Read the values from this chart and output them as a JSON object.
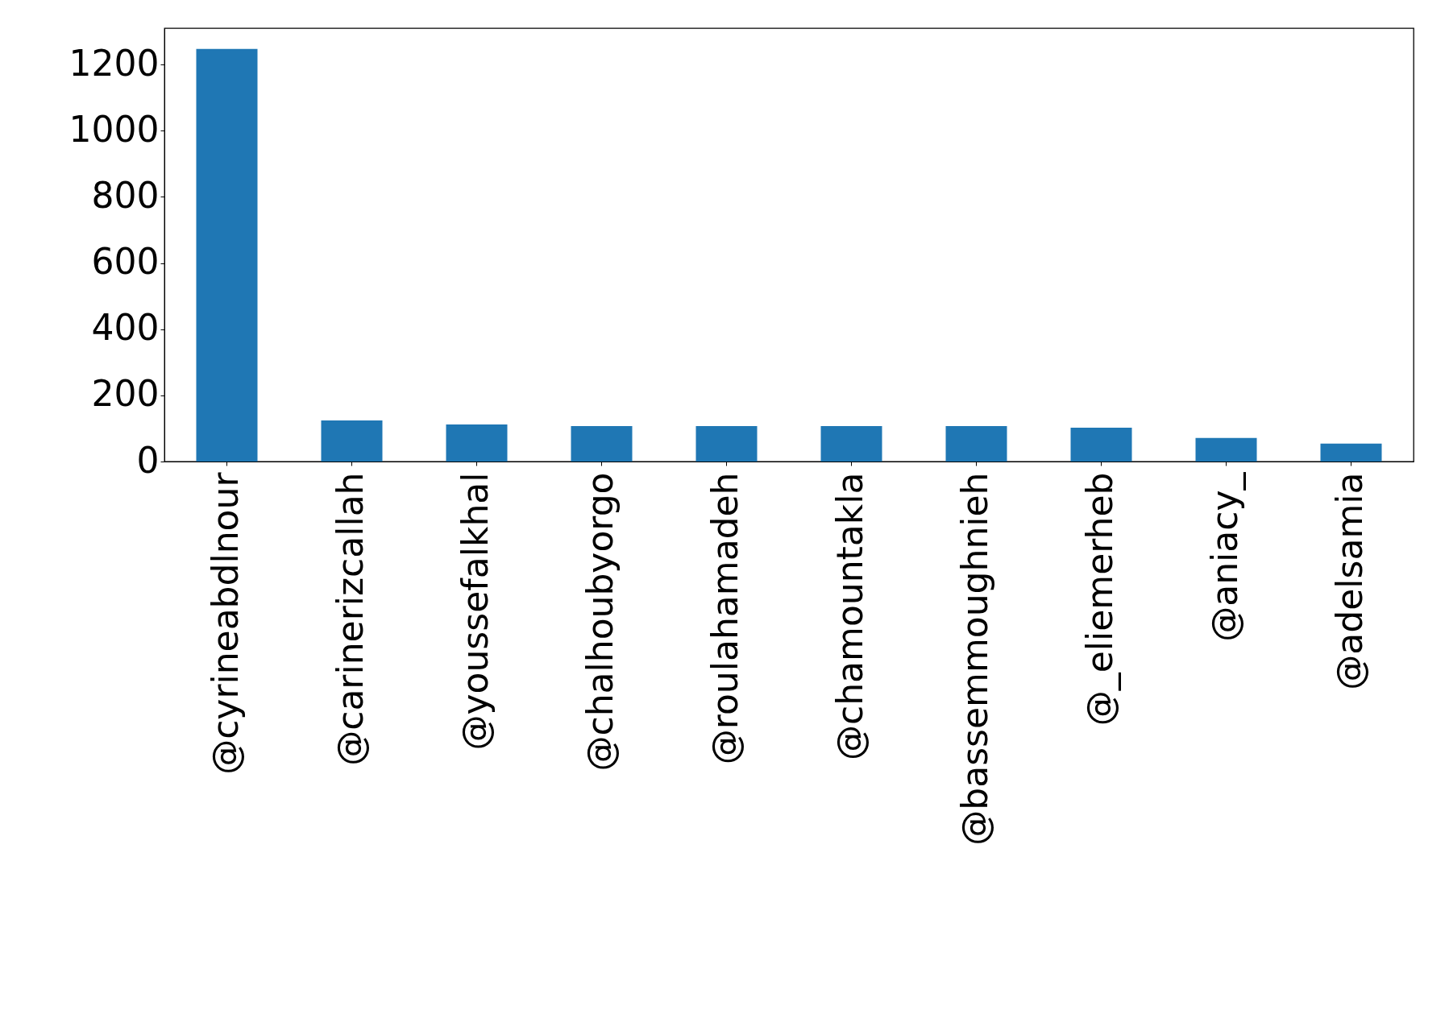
{
  "chart_data": {
    "type": "bar",
    "categories": [
      "@cyrineabdlnour",
      "@carinerizcallah",
      "@youssefalkhal",
      "@chalhoubyorgo",
      "@roulahamadeh",
      "@chamountakla",
      "@bassemmoughnieh",
      "@_eliemerheb",
      "@aniacy_",
      "@adelsamia"
    ],
    "values": [
      1247,
      124,
      112,
      107,
      107,
      107,
      107,
      102,
      71,
      54
    ],
    "color": "#1f77b4",
    "ylim": [
      0,
      1310
    ],
    "yticks": [
      0,
      200,
      400,
      600,
      800,
      1000,
      1200
    ],
    "grid": false
  }
}
